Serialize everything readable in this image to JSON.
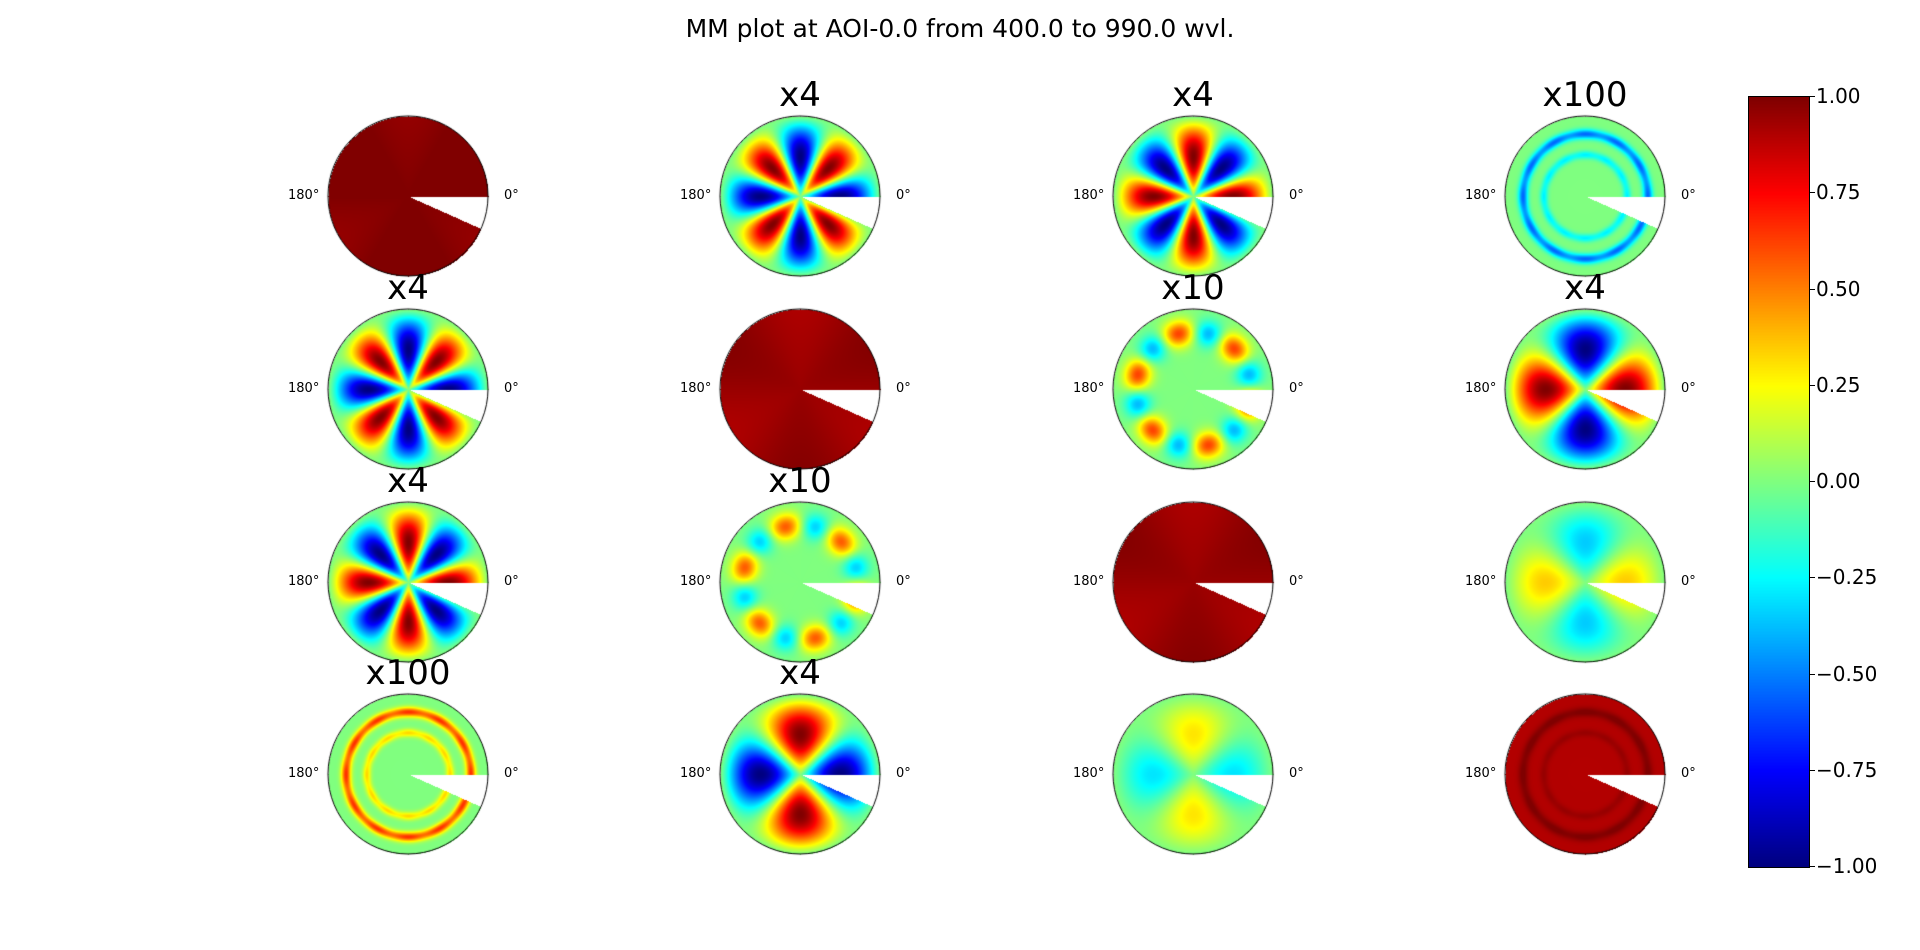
{
  "chart_data": {
    "type": "heatmap",
    "title": "MM plot at AOI-0.0 from 400.0 to 990.0 wvl.",
    "colormap": "jet",
    "grid": false,
    "polar": true,
    "angle_labels": [
      "180°",
      "0°"
    ],
    "colorbar": {
      "range": [
        -1.0,
        1.0
      ],
      "ticks": [
        "1.00",
        "0.75",
        "0.50",
        "0.25",
        "0.00",
        "−0.25",
        "−0.50",
        "−0.75",
        "−1.00"
      ],
      "position": "right"
    },
    "panels": [
      {
        "row": 0,
        "col": 0,
        "scale": "",
        "pattern": "uniform",
        "value": 1.0
      },
      {
        "row": 0,
        "col": 1,
        "scale": "x4",
        "pattern": "lobes",
        "m": 4,
        "phase": 0,
        "amp": -1.0
      },
      {
        "row": 0,
        "col": 2,
        "scale": "x4",
        "pattern": "lobes",
        "m": 4,
        "phase": 0,
        "amp": 1.0
      },
      {
        "row": 0,
        "col": 3,
        "scale": "x100",
        "pattern": "ring",
        "amp": -0.5
      },
      {
        "row": 1,
        "col": 0,
        "scale": "x4",
        "pattern": "lobes",
        "m": 4,
        "phase": 0,
        "amp": -1.0
      },
      {
        "row": 1,
        "col": 1,
        "scale": "",
        "pattern": "uniform",
        "value": 0.95
      },
      {
        "row": 1,
        "col": 2,
        "scale": "x10",
        "pattern": "hex",
        "amp": 0.5
      },
      {
        "row": 1,
        "col": 3,
        "scale": "x4",
        "pattern": "lobes",
        "m": 2,
        "phase": 0,
        "amp": 1.0
      },
      {
        "row": 2,
        "col": 0,
        "scale": "x4",
        "pattern": "lobes",
        "m": 4,
        "phase": 0,
        "amp": 1.0
      },
      {
        "row": 2,
        "col": 1,
        "scale": "x10",
        "pattern": "hex",
        "amp": 0.45
      },
      {
        "row": 2,
        "col": 2,
        "scale": "",
        "pattern": "uniform",
        "value": 0.95
      },
      {
        "row": 2,
        "col": 3,
        "scale": "",
        "pattern": "lobes",
        "m": 2,
        "phase": 0,
        "amp": 0.35
      },
      {
        "row": 3,
        "col": 0,
        "scale": "x100",
        "pattern": "ring",
        "amp": 0.6
      },
      {
        "row": 3,
        "col": 1,
        "scale": "x4",
        "pattern": "lobes",
        "m": 2,
        "phase": 0,
        "amp": -1.0
      },
      {
        "row": 3,
        "col": 2,
        "scale": "",
        "pattern": "lobes",
        "m": 2,
        "phase": 0,
        "amp": -0.3
      },
      {
        "row": 3,
        "col": 3,
        "scale": "",
        "pattern": "ring",
        "amp": 0.1,
        "base": 0.9
      }
    ]
  }
}
